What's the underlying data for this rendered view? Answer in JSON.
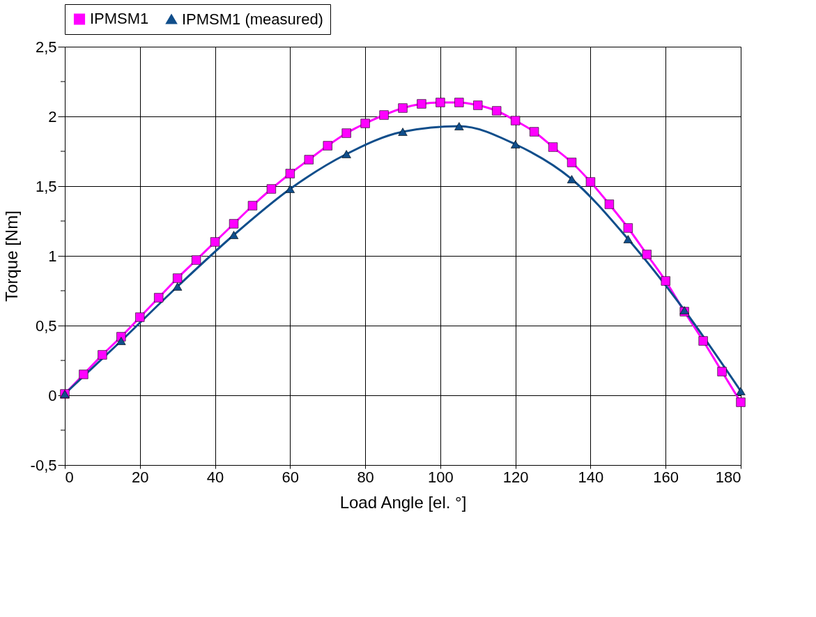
{
  "chart_data": {
    "type": "line",
    "xlabel": "Load Angle [el. °]",
    "ylabel": "Torque [Nm]",
    "xlim": [
      0,
      180
    ],
    "xticks": [
      0,
      20,
      40,
      60,
      80,
      100,
      120,
      140,
      160,
      180
    ],
    "ylim": [
      -0.5,
      2.5
    ],
    "yticks": [
      {
        "value": -0.5,
        "label": "-0,5"
      },
      {
        "value": -0.25,
        "label": null
      },
      0,
      {
        "value": 0.25,
        "label": null
      },
      {
        "value": 0.5,
        "label": "0,5"
      },
      {
        "value": 0.75,
        "label": null
      },
      1,
      {
        "value": 1.25,
        "label": null
      },
      {
        "value": 1.5,
        "label": "1,5"
      },
      {
        "value": 1.75,
        "label": null
      },
      2,
      {
        "value": 2.25,
        "label": null
      },
      {
        "value": 2.5,
        "label": "2,5"
      }
    ],
    "grid": true,
    "legend": "top",
    "line_style": "solid",
    "series": [
      {
        "name": "IPMSM1",
        "color": "#ff00ff",
        "marker": "square",
        "x": [
          0,
          5,
          10,
          15,
          20,
          25,
          30,
          35,
          40,
          45,
          50,
          55,
          60,
          65,
          70,
          75,
          80,
          85,
          90,
          95,
          100,
          105,
          110,
          115,
          120,
          125,
          130,
          135,
          140,
          145,
          150,
          155,
          160,
          165,
          170,
          175,
          180
        ],
        "values": [
          0.01,
          0.15,
          0.29,
          0.42,
          0.56,
          0.7,
          0.84,
          0.97,
          1.1,
          1.23,
          1.36,
          1.48,
          1.59,
          1.69,
          1.79,
          1.88,
          1.95,
          2.01,
          2.06,
          2.09,
          2.1,
          2.1,
          2.08,
          2.04,
          1.97,
          1.89,
          1.78,
          1.67,
          1.53,
          1.37,
          1.2,
          1.01,
          0.82,
          0.6,
          0.39,
          0.17,
          -0.05
        ]
      },
      {
        "name": "IPMSM1 (measured)",
        "color": "#104e8b",
        "marker": "triangle",
        "x": [
          0,
          15,
          30,
          45,
          60,
          75,
          90,
          105,
          120,
          135,
          150,
          165,
          180
        ],
        "values": [
          0.01,
          0.39,
          0.78,
          1.15,
          1.48,
          1.73,
          1.89,
          1.93,
          1.8,
          1.55,
          1.12,
          0.61,
          0.03
        ]
      }
    ]
  }
}
